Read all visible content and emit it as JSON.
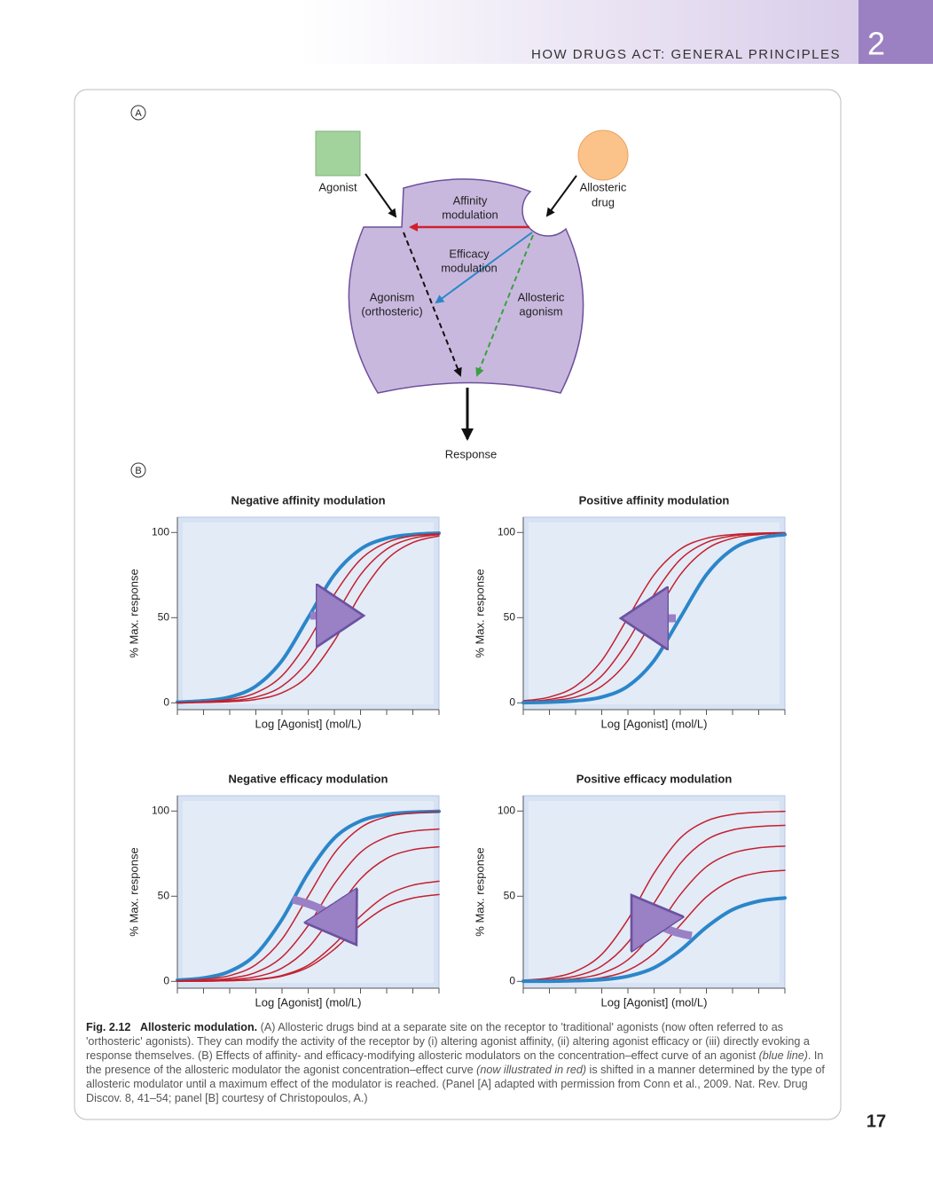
{
  "header": {
    "running_title": "HOW DRUGS ACT: GENERAL PRINCIPLES",
    "chapter": "2"
  },
  "panel_a": {
    "label": "A",
    "agonist": "Agonist",
    "allosteric_drug": [
      "Allosteric",
      "drug"
    ],
    "affinity_modulation": [
      "Affinity",
      "modulation"
    ],
    "efficacy_modulation": [
      "Efficacy",
      "modulation"
    ],
    "agonism": [
      "Agonism",
      "(orthosteric)"
    ],
    "allosteric_agonism": [
      "Allosteric",
      "agonism"
    ],
    "response": "Response"
  },
  "panel_b": {
    "label": "B"
  },
  "chart_data": [
    {
      "type": "line",
      "title": "Negative affinity modulation",
      "xlabel": "Log [Agonist] (mol/L)",
      "ylabel": "% Max. response",
      "categories": [
        null,
        null,
        null,
        null,
        null,
        null,
        null,
        null,
        null,
        null,
        null
      ],
      "ylim": [
        -4,
        109
      ],
      "yticks": [
        0,
        50,
        100
      ],
      "series": [
        {
          "color": "#2b86c9",
          "line_width": 4,
          "values": [
            0.4,
            1.2,
            3.4,
            9.8,
            24.8,
            50,
            75.2,
            90.2,
            96.6,
            98.8,
            99.6
          ]
        },
        {
          "color": "#c3202e",
          "line_width": 1.5,
          "values": [
            0.2,
            0.7,
            2.0,
            5.9,
            15.9,
            36.4,
            63.6,
            84.1,
            94.1,
            98.0,
            99.3
          ]
        },
        {
          "color": "#c3202e",
          "line_width": 1.5,
          "values": [
            0.1,
            0.4,
            1.2,
            3.4,
            9.8,
            24.8,
            50,
            75.2,
            90.2,
            96.6,
            98.8
          ]
        },
        {
          "color": "#c3202e",
          "line_width": 1.5,
          "values": [
            0.1,
            0.2,
            0.7,
            2.0,
            5.9,
            15.9,
            36.4,
            63.6,
            84.1,
            94.1,
            98.0
          ]
        }
      ]
    },
    {
      "type": "line",
      "title": "Positive affinity modulation",
      "xlabel": "Log [Agonist] (mol/L)",
      "ylabel": "% Max. response",
      "categories": [
        null,
        null,
        null,
        null,
        null,
        null,
        null,
        null,
        null,
        null,
        null
      ],
      "ylim": [
        -4,
        109
      ],
      "yticks": [
        0,
        50,
        100
      ],
      "series": [
        {
          "color": "#c3202e",
          "line_width": 1.5,
          "values": [
            1.2,
            3.4,
            9.8,
            24.8,
            50,
            75.2,
            90.2,
            96.6,
            98.8,
            99.6,
            99.9
          ]
        },
        {
          "color": "#c3202e",
          "line_width": 1.5,
          "values": [
            0.7,
            2.0,
            5.9,
            15.9,
            36.4,
            63.6,
            84.1,
            94.1,
            98.0,
            99.3,
            99.8
          ]
        },
        {
          "color": "#c3202e",
          "line_width": 1.5,
          "values": [
            0.4,
            1.2,
            3.4,
            9.8,
            24.8,
            50,
            75.2,
            90.2,
            96.6,
            98.8,
            99.6
          ]
        },
        {
          "color": "#2b86c9",
          "line_width": 4,
          "values": [
            0.1,
            0.4,
            1.2,
            3.4,
            9.8,
            24.8,
            50,
            75.2,
            90.2,
            96.6,
            98.8
          ]
        }
      ]
    },
    {
      "type": "line",
      "title": "Negative efficacy modulation",
      "xlabel": "Log [Agonist] (mol/L)",
      "ylabel": "% Max. response",
      "categories": [
        null,
        null,
        null,
        null,
        null,
        null,
        null,
        null,
        null,
        null,
        null
      ],
      "ylim": [
        -4,
        109
      ],
      "yticks": [
        0,
        50,
        100
      ],
      "series": [
        {
          "color": "#2b86c9",
          "line_width": 4,
          "values": [
            0.7,
            2.0,
            5.9,
            15.9,
            36.4,
            63.6,
            84.1,
            94.1,
            98.0,
            99.3,
            99.8
          ]
        },
        {
          "color": "#c3202e",
          "line_width": 1.5,
          "values": [
            0.4,
            1.2,
            3.4,
            9.8,
            24.8,
            50,
            75.2,
            90.2,
            96.6,
            98.8,
            99.6
          ]
        },
        {
          "color": "#c3202e",
          "line_width": 1.5,
          "values": [
            0.2,
            0.6,
            1.8,
            5.3,
            14.3,
            32.8,
            57.2,
            75.7,
            84.7,
            88.2,
            89.4
          ]
        },
        {
          "color": "#c3202e",
          "line_width": 1.5,
          "values": [
            0.1,
            0.3,
            1.0,
            2.7,
            7.8,
            19.8,
            40,
            60.2,
            72.2,
            77.3,
            79.0
          ]
        },
        {
          "color": "#c3202e",
          "line_width": 1.5,
          "values": [
            0.1,
            0.1,
            0.4,
            1.2,
            3.5,
            9.5,
            21.8,
            38.2,
            50.5,
            56.5,
            58.8
          ]
        },
        {
          "color": "#c3202e",
          "line_width": 1.5,
          "values": [
            0.1,
            0.1,
            0.4,
            1.0,
            3.1,
            8.3,
            18.9,
            33.1,
            43.7,
            48.9,
            51.0
          ]
        }
      ]
    },
    {
      "type": "line",
      "title": "Positive efficacy modulation",
      "xlabel": "Log [Agonist] (mol/L)",
      "ylabel": "% Max. response",
      "categories": [
        null,
        null,
        null,
        null,
        null,
        null,
        null,
        null,
        null,
        null,
        null
      ],
      "ylim": [
        -4,
        109
      ],
      "yticks": [
        0,
        50,
        100
      ],
      "series": [
        {
          "color": "#c3202e",
          "line_width": 1.5,
          "values": [
            0.7,
            2.0,
            5.9,
            15.9,
            36.4,
            63.6,
            84.1,
            94.1,
            98.0,
            99.3,
            99.8
          ]
        },
        {
          "color": "#c3202e",
          "line_width": 1.5,
          "values": [
            0.4,
            1.1,
            3.1,
            9.0,
            22.8,
            46,
            69.2,
            83.0,
            88.9,
            90.9,
            91.6
          ]
        },
        {
          "color": "#c3202e",
          "line_width": 1.5,
          "values": [
            0.2,
            0.6,
            1.6,
            4.7,
            12.7,
            29.1,
            50.9,
            67.3,
            75.3,
            78.4,
            79.4
          ]
        },
        {
          "color": "#c3202e",
          "line_width": 1.5,
          "values": [
            0.1,
            0.3,
            0.8,
            2.2,
            6.5,
            16.4,
            33,
            49.6,
            59.5,
            63.8,
            65.2
          ]
        },
        {
          "color": "#2b86c9",
          "line_width": 4,
          "values": [
            0.1,
            0.1,
            0.4,
            1.0,
            3.0,
            8.0,
            18.2,
            31.8,
            42.1,
            47.1,
            49.0
          ]
        }
      ]
    }
  ],
  "caption": {
    "number": "Fig. 2.12",
    "title": "Allosteric modulation.",
    "body": [
      {
        "text": " (A) Allosteric drugs bind at a separate site on the receptor to 'traditional' agonists (now often referred to as 'orthosteric' agonists). They can modify the activity of the receptor by (i) altering agonist affinity, (ii) altering agonist efficacy or (iii) directly evoking a response themselves. (B) Effects of affinity- and efficacy-modifying allosteric modulators on the concentration–effect curve of an agonist "
      },
      {
        "text": "(blue line)",
        "italic": true
      },
      {
        "text": ". In the presence of the allosteric modulator the agonist concentration–effect curve "
      },
      {
        "text": "(now illustrated in red)",
        "italic": true
      },
      {
        "text": " is shifted in a manner determined by the type of allosteric modulator until a maximum effect of the modulator is reached. (Panel [A] adapted with permission from Conn et al., 2009. Nat. Rev. Drug Discov. 8, 41–54; panel [B] courtesy of Christopoulos, A.)"
      }
    ]
  },
  "page_number": "17"
}
